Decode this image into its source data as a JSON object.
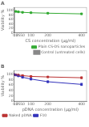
{
  "chart_data": [
    {
      "type": "line",
      "title": "A",
      "x": [
        10,
        25,
        50,
        100,
        200,
        400
      ],
      "xlabel": "CS concentration (µg/ml)",
      "ylabel": "Viability %",
      "series": [
        {
          "name": "Plain CS-DS nanoparticles",
          "color": "#33aa33",
          "marker": "square",
          "line_style": "solid",
          "values": [
            97,
            95,
            93,
            91,
            89,
            86
          ],
          "errors": [
            2.5,
            2,
            2,
            2,
            2,
            2.5
          ]
        },
        {
          "name": "Control (untreated cells)",
          "color": "#888888",
          "type": "span",
          "span": [
            0,
            5
          ]
        }
      ],
      "xlim": [
        0,
        430
      ],
      "ylim": [
        0,
        115
      ],
      "xticks": [
        0,
        10,
        25,
        50,
        100,
        200,
        400
      ],
      "yticks": [
        0,
        20,
        40,
        60,
        80,
        100
      ],
      "grid": false,
      "legend": "lower right"
    },
    {
      "type": "line",
      "title": "B",
      "x": [
        0,
        10,
        25,
        50,
        100,
        200,
        400
      ],
      "xlabel": "pDNA concentration (µg/ml)",
      "ylabel": "Viability %",
      "series": [
        {
          "name": "Naked pDNA",
          "color": "#bb3333",
          "marker": "square",
          "line_style": "solid",
          "values": [
            100,
            99,
            98,
            96,
            93,
            91,
            88
          ],
          "errors": [
            2,
            2,
            2,
            2.5,
            2,
            2,
            3
          ]
        },
        {
          "name": "F10",
          "color": "#3333bb",
          "marker": "square",
          "line_style": "solid",
          "values": [
            100,
            98,
            95,
            90,
            83,
            73,
            63
          ],
          "errors": [
            2,
            2,
            2.5,
            3,
            3,
            3,
            4
          ]
        }
      ],
      "xlim": [
        0,
        430
      ],
      "ylim": [
        0,
        115
      ],
      "xticks": [
        0,
        10,
        25,
        50,
        100,
        200,
        400
      ],
      "yticks": [
        0,
        20,
        40,
        60,
        80,
        100
      ],
      "grid": false,
      "legend": "lower left"
    }
  ]
}
